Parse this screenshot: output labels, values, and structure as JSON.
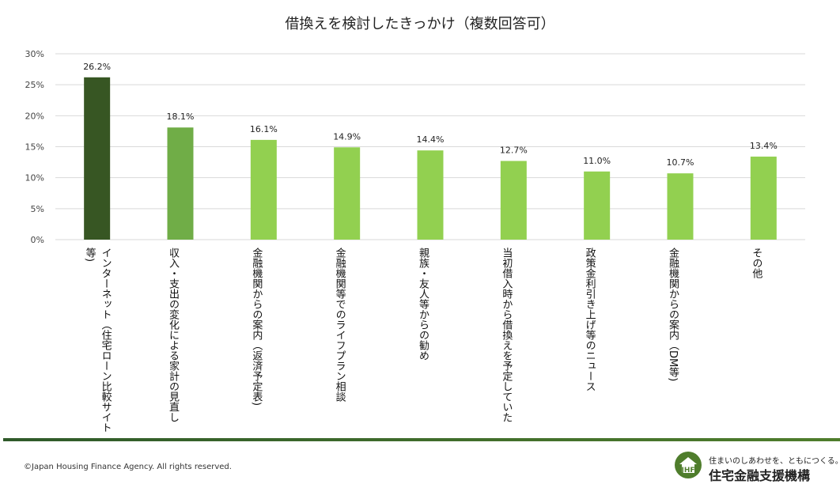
{
  "chart_data": {
    "type": "bar",
    "title": "借換えを検討したきっかけ（複数回答可）",
    "categories": [
      "インターネット（住宅ローン比較サイト等)",
      "収入・支出の変化による家計の見直し",
      "金融機関からの案内（返済予定表)",
      "金融機関等でのライフプラン相談",
      "親族・友人等からの勧め",
      "当初借入時から借換えを予定していた",
      "政策金利引き上げ等のニュース",
      "金融機関からの案内（DM等)",
      "その他"
    ],
    "values": [
      26.2,
      18.1,
      16.1,
      14.9,
      14.4,
      12.7,
      11.0,
      10.7,
      13.4
    ],
    "value_labels": [
      "26.2%",
      "18.1%",
      "16.1%",
      "14.9%",
      "14.4%",
      "12.7%",
      "11.0%",
      "10.7%",
      "13.4%"
    ],
    "bar_colors": [
      "#375623",
      "#70ad47",
      "#92d050",
      "#92d050",
      "#92d050",
      "#92d050",
      "#92d050",
      "#92d050",
      "#92d050"
    ],
    "ylim": [
      0,
      30
    ],
    "yticks": [
      0,
      5,
      10,
      15,
      20,
      25,
      30
    ],
    "ytick_labels": [
      "0%",
      "5%",
      "10%",
      "15%",
      "20%",
      "25%",
      "30%"
    ],
    "grid": true,
    "gridline_color": "#d9d9d9",
    "xlabel": "",
    "ylabel": ""
  },
  "footer": {
    "copyright": "©Japan Housing Finance Agency. All rights reserved.",
    "tagline": "住まいのしあわせを、ともにつくる。",
    "org_name": "住宅金融支援機構",
    "logo_icon": "house-logo-icon",
    "band_color": "#375623"
  }
}
